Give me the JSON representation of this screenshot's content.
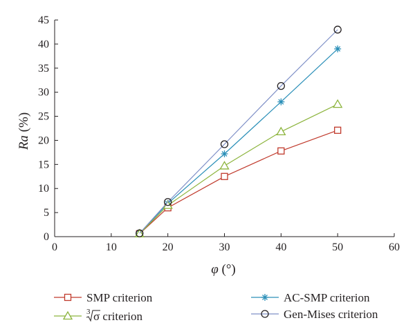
{
  "chart_data": {
    "type": "line",
    "xlabel": "φ",
    "xlabel_unit": " (°)",
    "ylabel": "Ra",
    "ylabel_unit": " (%)",
    "xlim": [
      0,
      60
    ],
    "ylim": [
      0,
      45
    ],
    "xticks": [
      0,
      10,
      20,
      30,
      40,
      50,
      60
    ],
    "yticks": [
      0,
      5,
      10,
      15,
      20,
      25,
      30,
      35,
      40,
      45
    ],
    "grid": false,
    "legend_position": "bottom",
    "x": [
      15,
      20,
      30,
      40,
      50
    ],
    "series": [
      {
        "name": "SMP criterion",
        "marker": "square",
        "color": "#c0392b",
        "values": [
          0.6,
          6.0,
          12.5,
          17.8,
          22.1
        ]
      },
      {
        "name": "AC-SMP criterion",
        "marker": "asterisk",
        "color": "#2a8fb8",
        "values": [
          0.7,
          6.9,
          17.2,
          28.0,
          39.0
        ]
      },
      {
        "name": "σ criterion",
        "root_index": "3",
        "marker": "triangle",
        "color": "#8cb43c",
        "values": [
          0.6,
          6.5,
          14.7,
          21.8,
          27.5
        ]
      },
      {
        "name": "Gen-Mises criterion",
        "marker": "circle",
        "color": "#7e8fc7",
        "values": [
          0.7,
          7.2,
          19.2,
          31.3,
          43.0
        ]
      }
    ]
  }
}
